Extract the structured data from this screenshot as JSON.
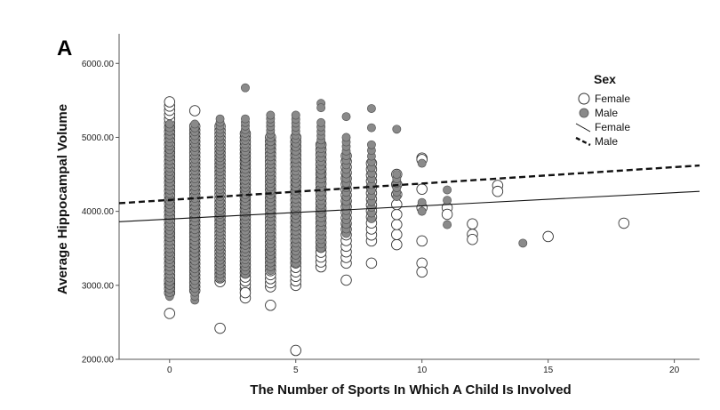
{
  "chart_data": {
    "type": "scatter",
    "panel_label": "A",
    "xlabel": "The Number of Sports In Which A Child Is Involved",
    "ylabel": "Average Hippocampal Volume",
    "xlim": [
      -2,
      21
    ],
    "ylim": [
      2000,
      6400
    ],
    "x_ticks": [
      0,
      5,
      10,
      15,
      20
    ],
    "y_ticks": [
      2000,
      3000,
      4000,
      5000,
      6000
    ],
    "y_tick_labels": [
      "2000.00",
      "3000.00",
      "4000.00",
      "5000.00",
      "6000.00"
    ],
    "grid": false,
    "legend": {
      "title": "Sex",
      "placement": "top-right",
      "entries": [
        "Female",
        "Male",
        "Female",
        "Male"
      ]
    },
    "series": [
      {
        "name": "Female",
        "marker": "open-circle",
        "color": "#ffffff",
        "columns": [
          {
            "x": 0,
            "ymin": 2900,
            "ymax": 5480,
            "count": 46
          },
          {
            "x": 1,
            "ymin": 2930,
            "ymax": 5150,
            "count": 44
          },
          {
            "x": 2,
            "ymin": 3050,
            "ymax": 5150,
            "count": 42
          },
          {
            "x": 3,
            "ymin": 2950,
            "ymax": 5050,
            "count": 40
          },
          {
            "x": 4,
            "ymin": 2980,
            "ymax": 5000,
            "count": 38
          },
          {
            "x": 5,
            "ymin": 3000,
            "ymax": 5000,
            "count": 34
          },
          {
            "x": 6,
            "ymin": 3250,
            "ymax": 4900,
            "count": 26
          },
          {
            "x": 7,
            "ymin": 3300,
            "ymax": 4750,
            "count": 20
          },
          {
            "x": 8,
            "ymin": 3600,
            "ymax": 4650,
            "count": 14
          },
          {
            "x": 9,
            "ymin": 3550,
            "ymax": 4500,
            "count": 8
          }
        ],
        "points": [
          {
            "x": 0,
            "y": 2620
          },
          {
            "x": 0,
            "y": 3010
          },
          {
            "x": 0,
            "y": 3060
          },
          {
            "x": 1,
            "y": 5360
          },
          {
            "x": 2,
            "y": 2420
          },
          {
            "x": 3,
            "y": 2830
          },
          {
            "x": 3,
            "y": 2900
          },
          {
            "x": 4,
            "y": 2730
          },
          {
            "x": 5,
            "y": 2120
          },
          {
            "x": 7,
            "y": 3070
          },
          {
            "x": 8,
            "y": 3300
          },
          {
            "x": 10,
            "y": 4720
          },
          {
            "x": 10,
            "y": 4700
          },
          {
            "x": 10,
            "y": 4300
          },
          {
            "x": 10,
            "y": 4050
          },
          {
            "x": 10,
            "y": 3600
          },
          {
            "x": 10,
            "y": 3300
          },
          {
            "x": 10,
            "y": 3180
          },
          {
            "x": 11,
            "y": 4050
          },
          {
            "x": 11,
            "y": 3960
          },
          {
            "x": 12,
            "y": 3830
          },
          {
            "x": 12,
            "y": 3690
          },
          {
            "x": 12,
            "y": 3620
          },
          {
            "x": 13,
            "y": 4350
          },
          {
            "x": 13,
            "y": 4270
          },
          {
            "x": 15,
            "y": 3660
          },
          {
            "x": 18,
            "y": 3840
          }
        ]
      },
      {
        "name": "Male",
        "marker": "filled-circle",
        "color": "#8a8a8a",
        "columns": [
          {
            "x": 0,
            "ymin": 2850,
            "ymax": 5180,
            "count": 48
          },
          {
            "x": 1,
            "ymin": 2800,
            "ymax": 5180,
            "count": 46
          },
          {
            "x": 2,
            "ymin": 3100,
            "ymax": 5250,
            "count": 46
          },
          {
            "x": 3,
            "ymin": 3150,
            "ymax": 5250,
            "count": 44
          },
          {
            "x": 4,
            "ymin": 3200,
            "ymax": 5300,
            "count": 42
          },
          {
            "x": 5,
            "ymin": 3300,
            "ymax": 5300,
            "count": 38
          },
          {
            "x": 6,
            "ymin": 3500,
            "ymax": 5200,
            "count": 30
          },
          {
            "x": 7,
            "ymin": 3700,
            "ymax": 5000,
            "count": 22
          },
          {
            "x": 8,
            "ymin": 3900,
            "ymax": 4900,
            "count": 14
          },
          {
            "x": 9,
            "ymin": 4200,
            "ymax": 4500,
            "count": 6
          }
        ],
        "points": [
          {
            "x": 3,
            "y": 5670
          },
          {
            "x": 6,
            "y": 5460
          },
          {
            "x": 6,
            "y": 5400
          },
          {
            "x": 7,
            "y": 5280
          },
          {
            "x": 8,
            "y": 5390
          },
          {
            "x": 8,
            "y": 5130
          },
          {
            "x": 9,
            "y": 5110
          },
          {
            "x": 10,
            "y": 4650
          },
          {
            "x": 10,
            "y": 4120
          },
          {
            "x": 10,
            "y": 4000
          },
          {
            "x": 11,
            "y": 4290
          },
          {
            "x": 11,
            "y": 4150
          },
          {
            "x": 11,
            "y": 3820
          },
          {
            "x": 14,
            "y": 3570
          }
        ]
      }
    ],
    "fit_lines": [
      {
        "name": "Female",
        "style": "solid",
        "x": [
          -2,
          21
        ],
        "y": [
          3860,
          4270
        ]
      },
      {
        "name": "Male",
        "style": "dashed",
        "x": [
          -2,
          21
        ],
        "y": [
          4110,
          4620
        ]
      }
    ]
  }
}
